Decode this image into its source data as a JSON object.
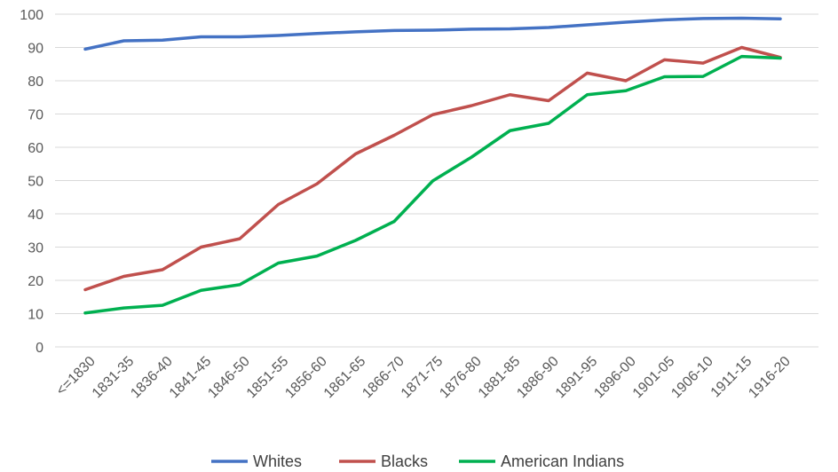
{
  "chart_data": {
    "type": "line",
    "title": "",
    "xlabel": "",
    "ylabel": "",
    "ylim": [
      0,
      100
    ],
    "yticks": [
      0,
      10,
      20,
      30,
      40,
      50,
      60,
      70,
      80,
      90,
      100
    ],
    "grid": true,
    "legend_position": "bottom",
    "categories": [
      "<=1830",
      "1831-35",
      "1836-40",
      "1841-45",
      "1846-50",
      "1851-55",
      "1856-60",
      "1861-65",
      "1866-70",
      "1871-75",
      "1876-80",
      "1881-85",
      "1886-90",
      "1891-95",
      "1896-00",
      "1901-05",
      "1906-10",
      "1911-15",
      "1916-20"
    ],
    "series": [
      {
        "name": "Whites",
        "color": "#4472c4",
        "values": [
          89.5,
          92,
          92.2,
          93.2,
          93.2,
          93.6,
          94.2,
          94.7,
          95.1,
          95.2,
          95.5,
          95.6,
          96,
          96.8,
          97.6,
          98.3,
          98.7,
          98.8,
          98.6
        ]
      },
      {
        "name": "Blacks",
        "color": "#c0504d",
        "values": [
          17.2,
          21.2,
          23.2,
          30,
          32.5,
          42.8,
          49,
          58,
          63.6,
          69.8,
          72.5,
          75.8,
          74,
          82.3,
          80,
          86.3,
          85.3,
          90,
          87
        ]
      },
      {
        "name": "American Indians",
        "color": "#00b050",
        "values": [
          10.2,
          11.7,
          12.5,
          17,
          18.7,
          25.2,
          27.3,
          32,
          37.7,
          49.9,
          57,
          65,
          67.2,
          75.8,
          77,
          81.2,
          81.3,
          87.3,
          86.8
        ]
      }
    ]
  }
}
